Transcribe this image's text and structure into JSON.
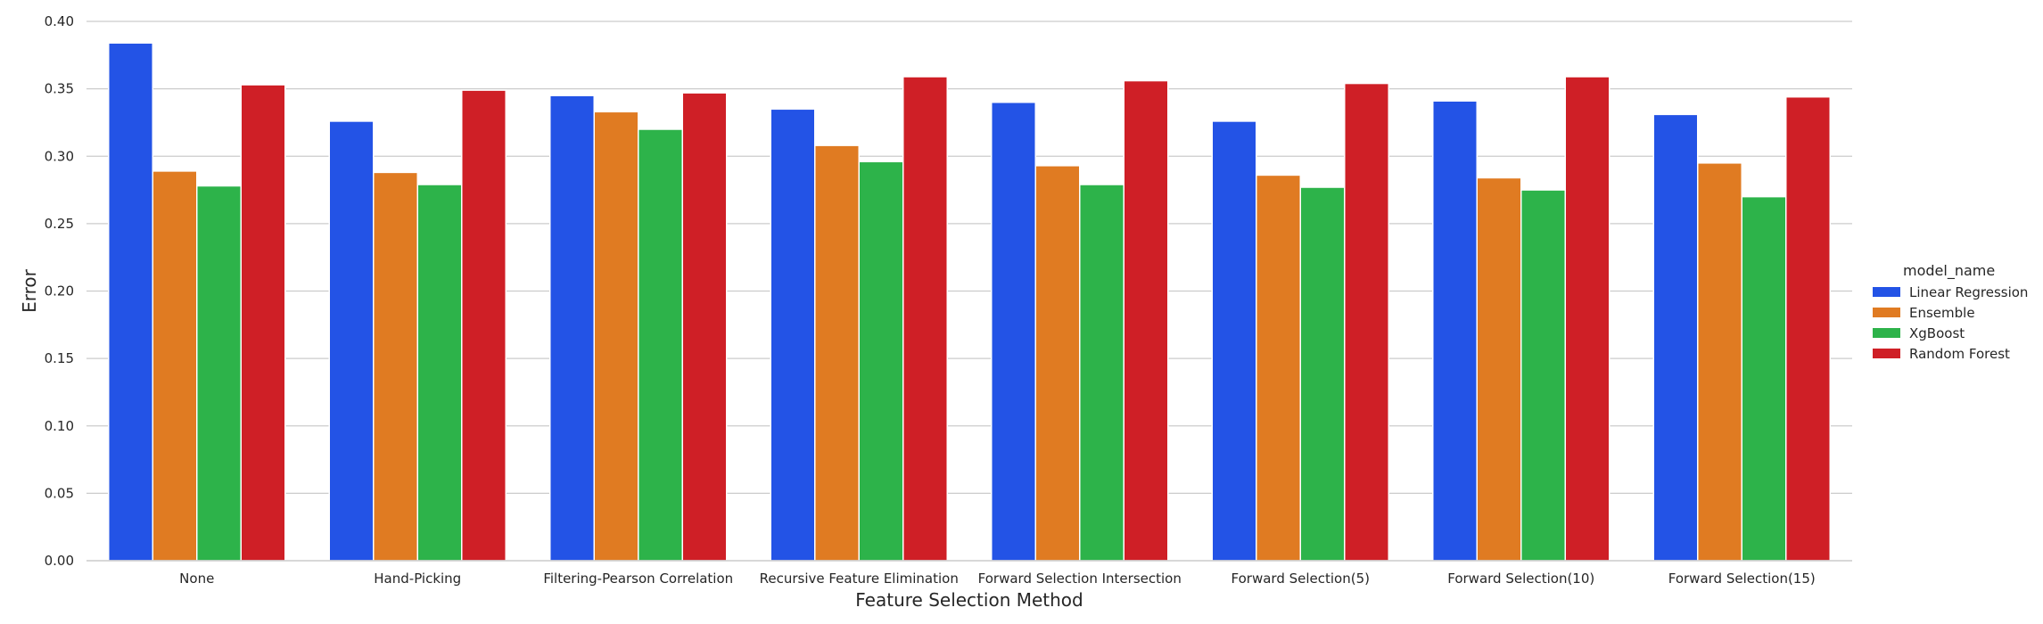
{
  "chart_data": {
    "type": "bar",
    "title": "",
    "xlabel": "Feature Selection Method",
    "ylabel": "Error",
    "ylim": [
      0,
      0.4
    ],
    "yticks": [
      "0.00",
      "0.05",
      "0.10",
      "0.15",
      "0.20",
      "0.25",
      "0.30",
      "0.35",
      "0.40"
    ],
    "grid": "horizontal",
    "legend_title": "model_name",
    "legend_position": "right",
    "categories": [
      "None",
      "Hand-Picking",
      "Filtering-Pearson Correlation",
      "Recursive Feature Elimination",
      "Forward Selection Intersection",
      "Forward Selection(5)",
      "Forward Selection(10)",
      "Forward Selection(15)"
    ],
    "series": [
      {
        "name": "Linear Regression",
        "color": "#2353e6",
        "values": [
          0.384,
          0.326,
          0.345,
          0.335,
          0.34,
          0.326,
          0.341,
          0.331
        ]
      },
      {
        "name": "Ensemble",
        "color": "#e07b22",
        "values": [
          0.289,
          0.288,
          0.333,
          0.308,
          0.293,
          0.286,
          0.284,
          0.295
        ]
      },
      {
        "name": "XgBoost",
        "color": "#2db34a",
        "values": [
          0.278,
          0.279,
          0.32,
          0.296,
          0.279,
          0.277,
          0.275,
          0.27
        ]
      },
      {
        "name": "Random Forest",
        "color": "#cf1f26",
        "values": [
          0.353,
          0.349,
          0.347,
          0.359,
          0.356,
          0.354,
          0.359,
          0.344
        ]
      }
    ]
  }
}
